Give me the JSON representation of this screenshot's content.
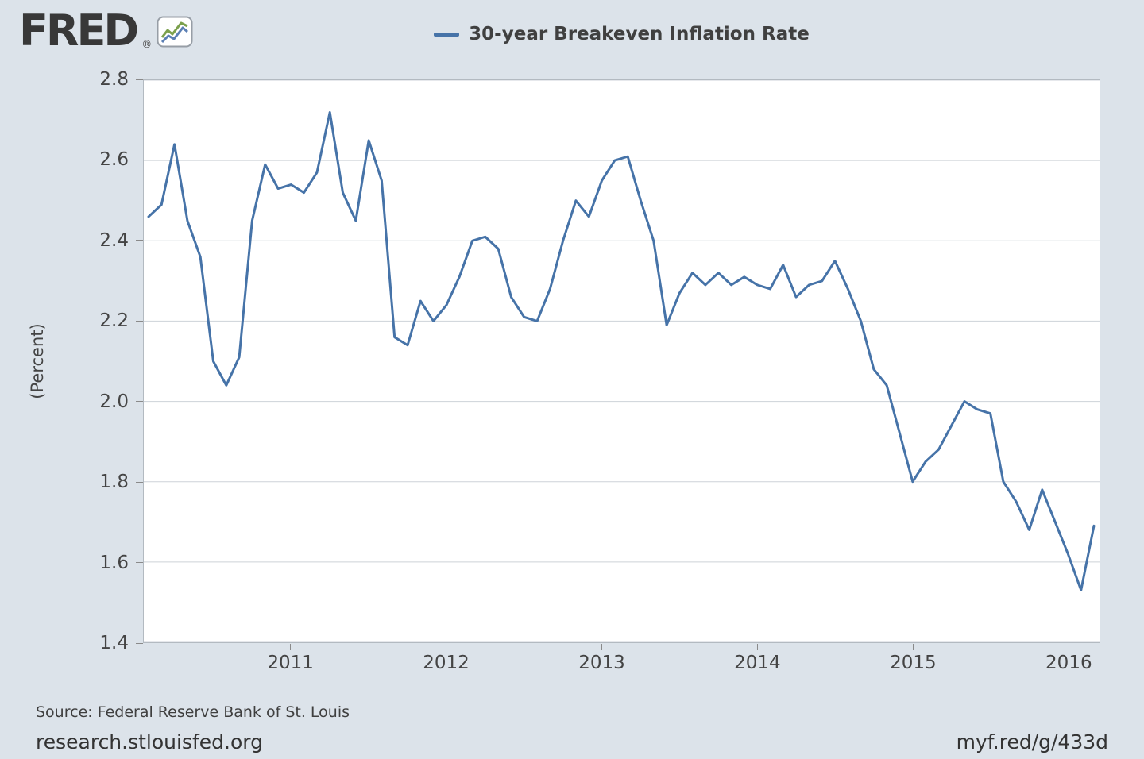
{
  "header": {
    "logo_text": "FRED",
    "registered_mark": "®"
  },
  "legend": {
    "label": "30-year Breakeven Inflation Rate"
  },
  "axes": {
    "y_label": "(Percent)"
  },
  "footer": {
    "source": "Source: Federal Reserve Bank of St. Louis",
    "site_link": "research.stlouisfed.org",
    "short_link": "myf.red/g/433d"
  },
  "colors": {
    "background": "#dce3ea",
    "plot_background": "#ffffff",
    "line": "#4673a8",
    "grid": "#cdd2d8",
    "text": "#444444"
  },
  "chart_data": {
    "type": "line",
    "title": "30-year Breakeven Inflation Rate",
    "xlabel": "",
    "ylabel": "(Percent)",
    "ylim": [
      1.4,
      2.8
    ],
    "y_ticks": [
      2.8,
      2.6,
      2.4,
      2.2,
      2.0,
      1.8,
      1.6,
      1.4
    ],
    "x_ticks": [
      {
        "label": "2011",
        "month_index": 11
      },
      {
        "label": "2012",
        "month_index": 23
      },
      {
        "label": "2013",
        "month_index": 35
      },
      {
        "label": "2014",
        "month_index": 47
      },
      {
        "label": "2015",
        "month_index": 59
      },
      {
        "label": "2016",
        "month_index": 71
      }
    ],
    "grid": "horizontal gridlines only",
    "legend_position": "top-center",
    "frequency": "monthly",
    "start": "2010-02",
    "end": "2016-03",
    "series": [
      {
        "name": "30-year Breakeven Inflation Rate",
        "x": [
          "2010-02",
          "2010-03",
          "2010-04",
          "2010-05",
          "2010-06",
          "2010-07",
          "2010-08",
          "2010-09",
          "2010-10",
          "2010-11",
          "2010-12",
          "2011-01",
          "2011-02",
          "2011-03",
          "2011-04",
          "2011-05",
          "2011-06",
          "2011-07",
          "2011-08",
          "2011-09",
          "2011-10",
          "2011-11",
          "2011-12",
          "2012-01",
          "2012-02",
          "2012-03",
          "2012-04",
          "2012-05",
          "2012-06",
          "2012-07",
          "2012-08",
          "2012-09",
          "2012-10",
          "2012-11",
          "2012-12",
          "2013-01",
          "2013-02",
          "2013-03",
          "2013-04",
          "2013-05",
          "2013-06",
          "2013-07",
          "2013-08",
          "2013-09",
          "2013-10",
          "2013-11",
          "2013-12",
          "2014-01",
          "2014-02",
          "2014-03",
          "2014-04",
          "2014-05",
          "2014-06",
          "2014-07",
          "2014-08",
          "2014-09",
          "2014-10",
          "2014-11",
          "2014-12",
          "2015-01",
          "2015-02",
          "2015-03",
          "2015-04",
          "2015-05",
          "2015-06",
          "2015-07",
          "2015-08",
          "2015-09",
          "2015-10",
          "2015-11",
          "2015-12",
          "2016-01",
          "2016-02",
          "2016-03"
        ],
        "values": [
          2.46,
          2.49,
          2.64,
          2.45,
          2.36,
          2.1,
          2.04,
          2.11,
          2.45,
          2.59,
          2.53,
          2.54,
          2.52,
          2.57,
          2.72,
          2.52,
          2.45,
          2.65,
          2.55,
          2.16,
          2.14,
          2.25,
          2.2,
          2.24,
          2.31,
          2.4,
          2.41,
          2.38,
          2.26,
          2.21,
          2.2,
          2.28,
          2.4,
          2.5,
          2.46,
          2.55,
          2.6,
          2.61,
          2.5,
          2.4,
          2.19,
          2.27,
          2.32,
          2.29,
          2.32,
          2.29,
          2.31,
          2.29,
          2.28,
          2.34,
          2.26,
          2.29,
          2.3,
          2.35,
          2.28,
          2.2,
          2.08,
          2.04,
          1.92,
          1.8,
          1.85,
          1.88,
          1.94,
          2.0,
          1.98,
          1.97,
          1.8,
          1.75,
          1.68,
          1.78,
          1.7,
          1.62,
          1.53,
          1.69
        ]
      }
    ]
  }
}
